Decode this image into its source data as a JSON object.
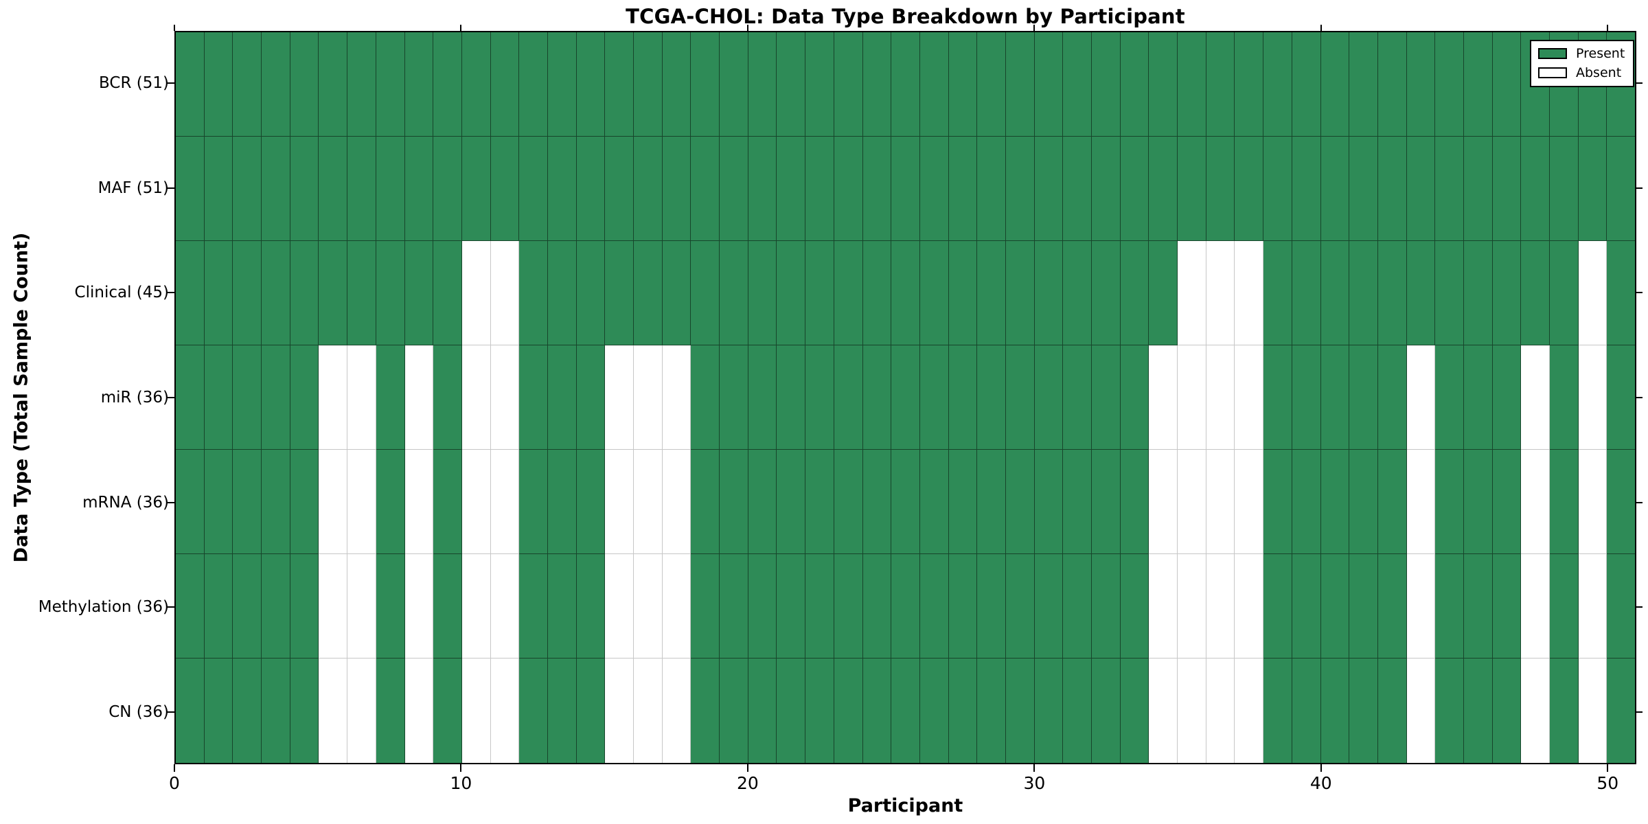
{
  "title": "TCGA-CHOL: Data Type Breakdown by Participant",
  "axes": {
    "xlabel": "Participant",
    "ylabel": "Data Type (Total Sample Count)",
    "x_tick_labels": [
      "0",
      "10",
      "20",
      "30",
      "40",
      "50"
    ],
    "x_tick_values": [
      0,
      10,
      20,
      30,
      40,
      50
    ],
    "x_range": [
      0,
      51
    ]
  },
  "legend": {
    "position": "upper-right",
    "items": [
      {
        "label": "Present",
        "color": "#2e8b57"
      },
      {
        "label": "Absent",
        "color": "#ffffff"
      }
    ]
  },
  "colors": {
    "present": "#2e8b57",
    "absent": "#ffffff",
    "frame": "#000000",
    "background": "#ffffff"
  },
  "chart_data": {
    "type": "heatmap",
    "x_axis": "participant index 0 to 50",
    "n_participants": 51,
    "value_meaning": {
      "present": "green cell",
      "absent": "white cell"
    },
    "rows": [
      {
        "data_type": "BCR",
        "label": "BCR (51)",
        "present_count": 51,
        "absent_participants": []
      },
      {
        "data_type": "MAF",
        "label": "MAF (51)",
        "present_count": 51,
        "absent_participants": []
      },
      {
        "data_type": "Clinical",
        "label": "Clinical (45)",
        "present_count": 45,
        "absent_participants": [
          10,
          11,
          35,
          36,
          37,
          49
        ]
      },
      {
        "data_type": "miR",
        "label": "miR (36)",
        "present_count": 36,
        "absent_participants": [
          5,
          6,
          8,
          10,
          11,
          15,
          16,
          17,
          34,
          35,
          36,
          37,
          43,
          47,
          49
        ]
      },
      {
        "data_type": "mRNA",
        "label": "mRNA (36)",
        "present_count": 36,
        "absent_participants": [
          5,
          6,
          8,
          10,
          11,
          15,
          16,
          17,
          34,
          35,
          36,
          37,
          43,
          47,
          49
        ]
      },
      {
        "data_type": "Methylation",
        "label": "Methylation (36)",
        "present_count": 36,
        "absent_participants": [
          5,
          6,
          8,
          10,
          11,
          15,
          16,
          17,
          34,
          35,
          36,
          37,
          43,
          47,
          49
        ]
      },
      {
        "data_type": "CN",
        "label": "CN (36)",
        "present_count": 36,
        "absent_participants": [
          5,
          6,
          8,
          10,
          11,
          15,
          16,
          17,
          34,
          35,
          36,
          37,
          43,
          47,
          49
        ]
      }
    ]
  }
}
